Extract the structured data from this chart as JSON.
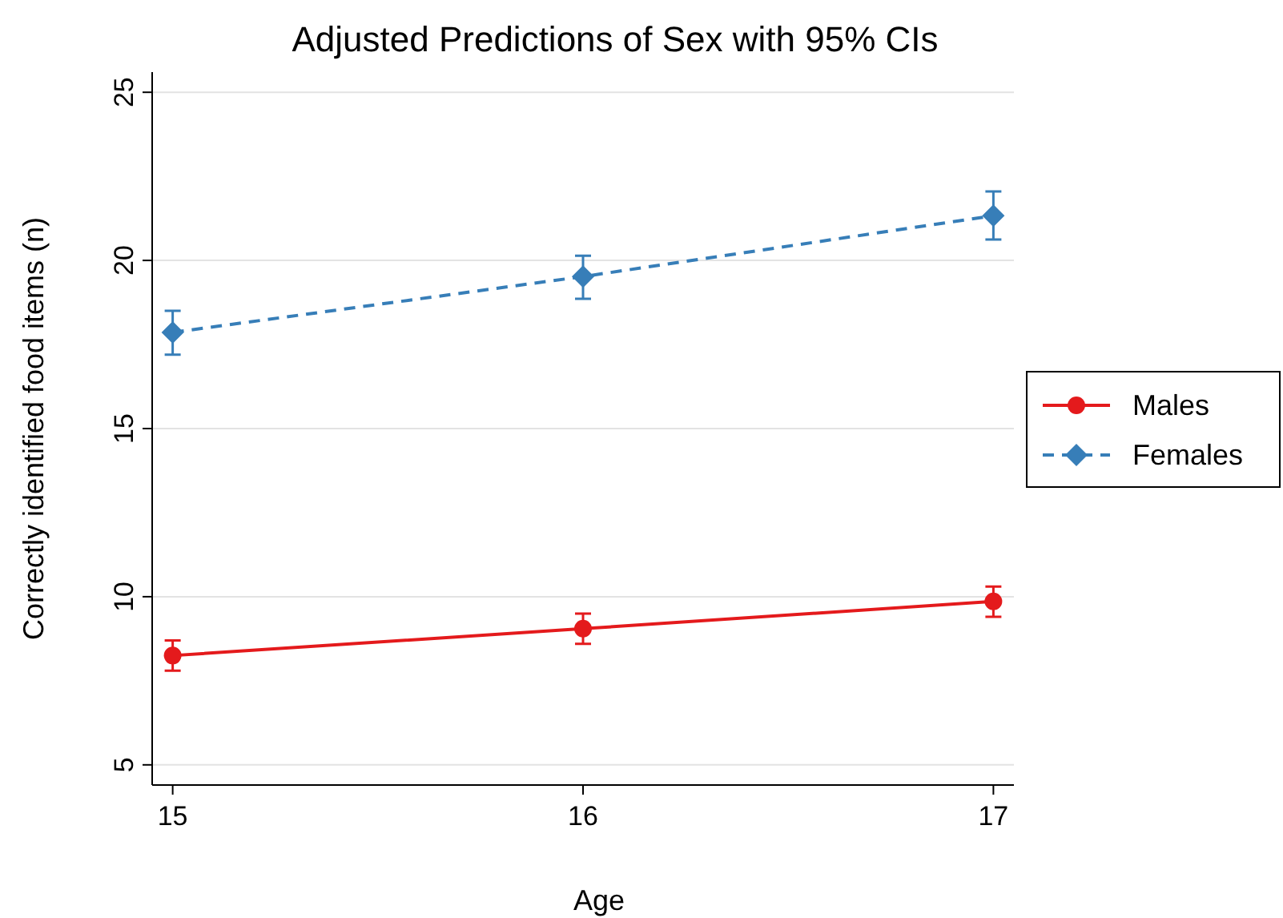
{
  "chart_data": {
    "type": "line",
    "title": "Adjusted Predictions of Sex with 95% CIs",
    "xlabel": "Age",
    "ylabel": "Correctly identified food items (n)",
    "x": [
      15,
      16,
      17
    ],
    "xlim": [
      14.95,
      17.05
    ],
    "xticks": [
      15,
      16,
      17
    ],
    "ylim": [
      4.4,
      25.6
    ],
    "yticks": [
      5,
      10,
      15,
      20,
      25
    ],
    "grid": "y",
    "legend": "right",
    "series": [
      {
        "name": "Males",
        "color": "#e41a1c",
        "marker": "circle",
        "line_style": "solid",
        "values": [
          8.25,
          9.05,
          9.86
        ],
        "errors": [
          [
            7.8,
            8.7
          ],
          [
            8.6,
            9.5
          ],
          [
            9.4,
            10.3
          ]
        ]
      },
      {
        "name": "Females",
        "color": "#377eb8",
        "marker": "diamond",
        "line_style": "dashed",
        "values": [
          17.86,
          19.52,
          21.33
        ],
        "errors": [
          [
            17.2,
            18.5
          ],
          [
            18.86,
            20.14
          ],
          [
            20.62,
            22.05
          ]
        ]
      }
    ]
  }
}
